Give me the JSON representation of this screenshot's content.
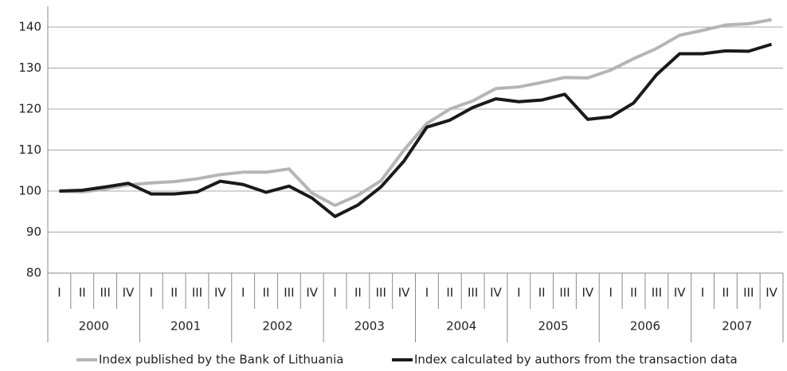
{
  "chart_data": {
    "type": "line",
    "categories": [
      "I",
      "II",
      "III",
      "IV",
      "I",
      "II",
      "III",
      "IV",
      "I",
      "II",
      "III",
      "IV",
      "I",
      "II",
      "III",
      "IV",
      "I",
      "II",
      "III",
      "IV",
      "I",
      "II",
      "III",
      "IV",
      "I",
      "II",
      "III",
      "IV",
      "I",
      "II",
      "III",
      "IV"
    ],
    "groups": [
      "2000",
      "2001",
      "2002",
      "2003",
      "2004",
      "2005",
      "2006",
      "2007"
    ],
    "series": [
      {
        "name": "Index published by the Bank of Lithuania",
        "color": "#b5b5b5",
        "values": [
          100,
          99.8,
          100.5,
          101.5,
          102,
          102.3,
          103,
          104,
          104.6,
          104.6,
          105.4,
          99.5,
          96.5,
          99,
          102.5,
          110,
          116.5,
          120,
          122,
          125,
          125.4,
          126.5,
          127.7,
          127.6,
          129.5,
          132.3,
          134.8,
          138,
          139.2,
          140.5,
          140.8,
          141.8
        ]
      },
      {
        "name": "Index calculated by authors from the transaction data",
        "color": "#1a1a1a",
        "values": [
          100,
          100.2,
          101,
          101.9,
          99.3,
          99.3,
          99.8,
          102.4,
          101.6,
          99.7,
          101.2,
          98.3,
          93.8,
          96.6,
          101,
          107.3,
          115.6,
          117.3,
          120.4,
          122.5,
          121.8,
          122.2,
          123.6,
          117.5,
          118.1,
          121.5,
          128.4,
          133.5,
          133.5,
          134.2,
          134.1,
          135.8
        ]
      }
    ],
    "ylim": [
      80,
      145
    ],
    "yticks": [
      80,
      90,
      100,
      110,
      120,
      130,
      140
    ],
    "grid": true,
    "legend": "bottom"
  }
}
